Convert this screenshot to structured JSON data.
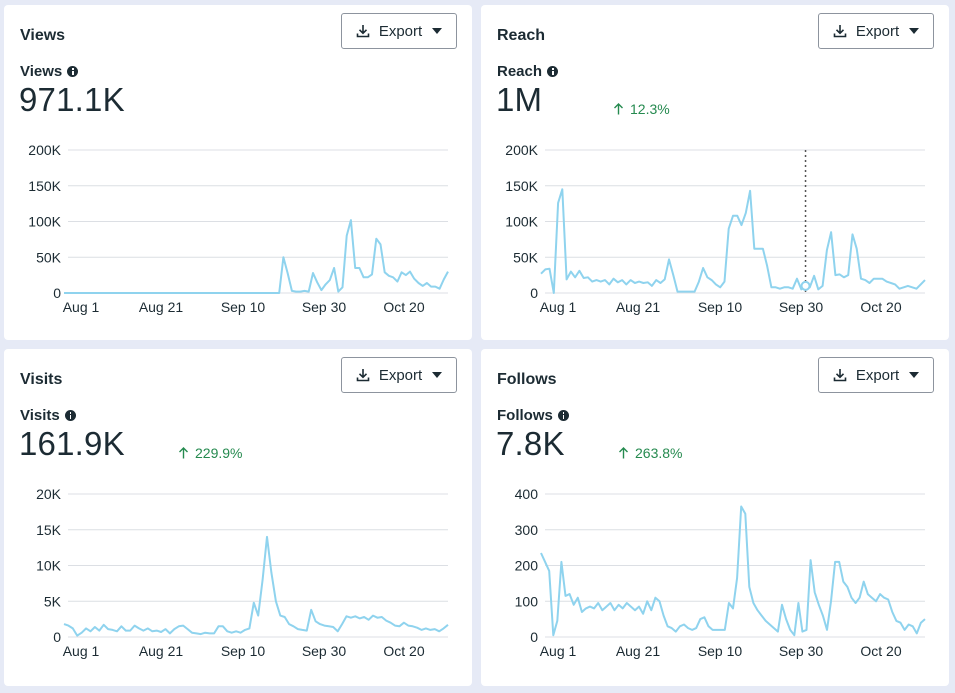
{
  "colors": {
    "line": "#8fd3ee",
    "grid": "#dcdfe4",
    "positive": "#258a4f"
  },
  "cards": [
    {
      "title": "Views",
      "export_label": "Export",
      "metric_label": "Views",
      "value": "971.1K",
      "change": "",
      "chart_data": {
        "type": "line",
        "ymax": 200000,
        "y_ticks": [
          "200K",
          "150K",
          "100K",
          "50K",
          "0"
        ],
        "x_ticks": [
          "Aug 1",
          "Aug 21",
          "Sep 10",
          "Sep 30",
          "Oct 20"
        ],
        "values": [
          0,
          0,
          0,
          0,
          0,
          0,
          0,
          0,
          0,
          0,
          0,
          0,
          0,
          0,
          0,
          0,
          0,
          0,
          0,
          0,
          0,
          0,
          0,
          0,
          0,
          0,
          0,
          0,
          0,
          0,
          0,
          0,
          0,
          0,
          0,
          0,
          0,
          0,
          0,
          0,
          0,
          0,
          0,
          0,
          0,
          0,
          0,
          0,
          0,
          0,
          0,
          0,
          50000,
          28000,
          3000,
          2000,
          2000,
          3000,
          2000,
          28000,
          15000,
          4000,
          12000,
          18000,
          35000,
          2000,
          8000,
          80000,
          102000,
          35000,
          35000,
          22000,
          22000,
          26000,
          76000,
          68000,
          29000,
          24000,
          22000,
          16000,
          29000,
          25000,
          30000,
          20000,
          14000,
          10000,
          14000,
          9000,
          9000,
          6000,
          19000,
          30000
        ]
      }
    },
    {
      "title": "Reach",
      "export_label": "Export",
      "metric_label": "Reach",
      "value": "1M",
      "change": "12.3%",
      "chart_data": {
        "type": "line",
        "ymax": 200000,
        "y_ticks": [
          "200K",
          "150K",
          "100K",
          "50K",
          "0"
        ],
        "x_ticks": [
          "Aug 1",
          "Aug 21",
          "Sep 10",
          "Sep 30",
          "Oct 20"
        ],
        "hover_index": 62,
        "values": [
          27000,
          33000,
          34000,
          0,
          126000,
          145000,
          19000,
          30000,
          22000,
          31000,
          21000,
          22000,
          16000,
          18000,
          16000,
          18000,
          12000,
          20000,
          15000,
          18000,
          12000,
          18000,
          14000,
          16000,
          14000,
          15000,
          10000,
          18000,
          14000,
          19000,
          47000,
          25000,
          2000,
          2000,
          2000,
          2000,
          2000,
          16000,
          35000,
          22000,
          18000,
          12000,
          8000,
          16000,
          90000,
          108000,
          108000,
          95000,
          112000,
          143000,
          62000,
          62000,
          62000,
          38000,
          8000,
          8000,
          6000,
          8000,
          8000,
          6000,
          20000,
          5000,
          10000,
          8000,
          24000,
          5000,
          10000,
          60000,
          85000,
          25000,
          26000,
          22000,
          25000,
          82000,
          62000,
          20000,
          18000,
          14000,
          20000,
          20000,
          20000,
          16000,
          14000,
          12000,
          6000,
          8000,
          10000,
          8000,
          6000,
          12000,
          18000
        ]
      }
    },
    {
      "title": "Visits",
      "export_label": "Export",
      "metric_label": "Visits",
      "value": "161.9K",
      "change": "229.9%",
      "chart_data": {
        "type": "line",
        "ymax": 20000,
        "y_ticks": [
          "20K",
          "15K",
          "10K",
          "5K",
          "0"
        ],
        "x_ticks": [
          "Aug 1",
          "Aug 21",
          "Sep 10",
          "Sep 30",
          "Oct 20"
        ],
        "values": [
          1800,
          1600,
          1200,
          200,
          600,
          1200,
          800,
          1400,
          900,
          1700,
          1100,
          1000,
          800,
          1500,
          900,
          900,
          1600,
          1200,
          900,
          1200,
          800,
          900,
          700,
          1100,
          500,
          1100,
          1500,
          1600,
          1100,
          600,
          500,
          400,
          600,
          500,
          500,
          1500,
          1500,
          800,
          600,
          800,
          600,
          1000,
          1200,
          4800,
          3000,
          8000,
          14000,
          9000,
          5000,
          3000,
          2800,
          1800,
          1500,
          1100,
          1000,
          900,
          3800,
          2200,
          1800,
          1600,
          1500,
          1400,
          800,
          1800,
          2900,
          2700,
          2900,
          2600,
          2800,
          2400,
          3000,
          2700,
          2800,
          2300,
          2000,
          1600,
          1500,
          2000,
          1600,
          1500,
          1300,
          1000,
          1200,
          1000,
          1100,
          800,
          1200,
          1700
        ]
      }
    },
    {
      "title": "Follows",
      "export_label": "Export",
      "metric_label": "Follows",
      "value": "7.8K",
      "change": "263.8%",
      "chart_data": {
        "type": "line",
        "ymax": 400,
        "y_ticks": [
          "400",
          "300",
          "200",
          "100",
          "0"
        ],
        "x_ticks": [
          "Aug 1",
          "Aug 21",
          "Sep 10",
          "Sep 30",
          "Oct 20"
        ],
        "values": [
          235,
          210,
          185,
          5,
          45,
          210,
          115,
          120,
          90,
          110,
          70,
          80,
          85,
          80,
          95,
          75,
          85,
          95,
          75,
          90,
          80,
          95,
          85,
          75,
          85,
          65,
          100,
          75,
          110,
          100,
          60,
          30,
          25,
          15,
          30,
          35,
          25,
          20,
          25,
          50,
          55,
          30,
          20,
          20,
          20,
          20,
          95,
          80,
          165,
          365,
          345,
          140,
          95,
          75,
          60,
          45,
          35,
          25,
          15,
          90,
          50,
          20,
          5,
          95,
          15,
          20,
          215,
          125,
          90,
          60,
          20,
          100,
          210,
          210,
          155,
          140,
          110,
          95,
          110,
          155,
          120,
          110,
          100,
          120,
          110,
          105,
          70,
          45,
          40,
          20,
          35,
          30,
          10,
          40,
          50
        ]
      }
    }
  ]
}
